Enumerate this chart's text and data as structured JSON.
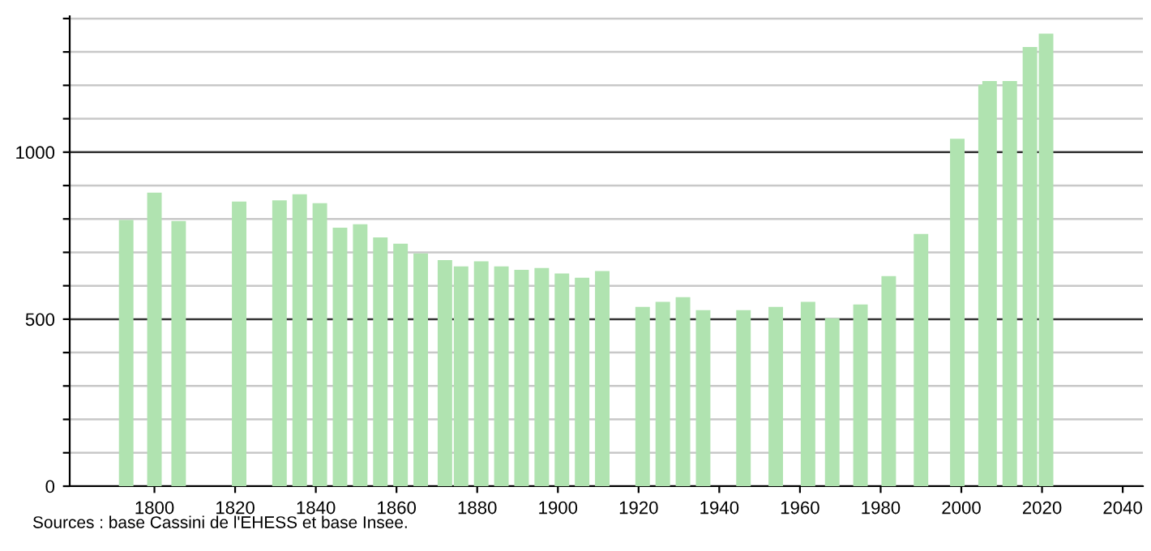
{
  "chart_data": {
    "type": "bar",
    "x": [
      1793,
      1800,
      1806,
      1821,
      1831,
      1836,
      1841,
      1846,
      1851,
      1856,
      1861,
      1866,
      1872,
      1876,
      1881,
      1886,
      1891,
      1896,
      1901,
      1906,
      1911,
      1921,
      1926,
      1931,
      1936,
      1946,
      1954,
      1962,
      1968,
      1975,
      1982,
      1990,
      1999,
      2006,
      2007,
      2012,
      2017,
      2021
    ],
    "values": [
      797,
      879,
      794,
      852,
      856,
      874,
      847,
      774,
      784,
      745,
      726,
      697,
      677,
      658,
      673,
      658,
      648,
      653,
      637,
      624,
      644,
      537,
      552,
      566,
      527,
      527,
      537,
      552,
      503,
      544,
      629,
      755,
      1040,
      1202,
      1213,
      1213,
      1315,
      1355
    ],
    "color": "#b0e3b0",
    "xlim": [
      1779,
      2045
    ],
    "xticks": [
      1800,
      1820,
      1840,
      1860,
      1880,
      1900,
      1920,
      1940,
      1960,
      1980,
      2000,
      2020,
      2040
    ],
    "ylim": [
      0,
      1407
    ],
    "yticks": [
      0,
      {
        "value": 100,
        "label": null
      },
      {
        "value": 200,
        "label": null
      },
      {
        "value": 300,
        "label": null
      },
      {
        "value": 400,
        "label": null
      },
      500,
      {
        "value": 600,
        "label": null
      },
      {
        "value": 700,
        "label": null
      },
      {
        "value": 800,
        "label": null
      },
      {
        "value": 900,
        "label": null
      },
      1000,
      {
        "value": 1100,
        "label": null
      },
      {
        "value": 1200,
        "label": null
      },
      {
        "value": 1300,
        "label": null
      },
      {
        "value": 1400,
        "label": null
      }
    ],
    "grid": "y",
    "annotations": [
      "Sources : base Cassini de l'EHESS et base Insee."
    ]
  }
}
